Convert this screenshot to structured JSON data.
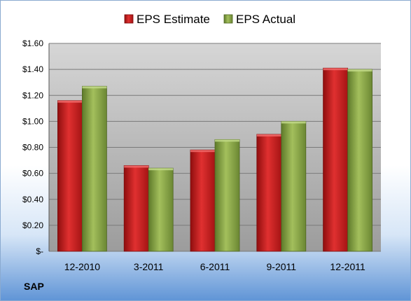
{
  "chart_data": {
    "type": "bar",
    "categories": [
      "12-2010",
      "3-2011",
      "6-2011",
      "9-2011",
      "12-2011"
    ],
    "series": [
      {
        "name": "EPS Estimate",
        "color": "#cc1f1f",
        "values": [
          1.16,
          0.66,
          0.78,
          0.9,
          1.41
        ]
      },
      {
        "name": "EPS Actual",
        "color": "#8faa4a",
        "values": [
          1.27,
          0.64,
          0.86,
          1.0,
          1.4
        ]
      }
    ],
    "ylim": [
      0,
      1.6
    ],
    "yticks": [
      0,
      0.2,
      0.4,
      0.6,
      0.8,
      1.0,
      1.2,
      1.4,
      1.6
    ],
    "ytick_labels": [
      "$-",
      "$0.20",
      "$0.40",
      "$0.60",
      "$0.80",
      "$1.00",
      "$1.20",
      "$1.40",
      "$1.60"
    ],
    "grid": true,
    "legend_position": "top",
    "footer_label": "SAP"
  }
}
